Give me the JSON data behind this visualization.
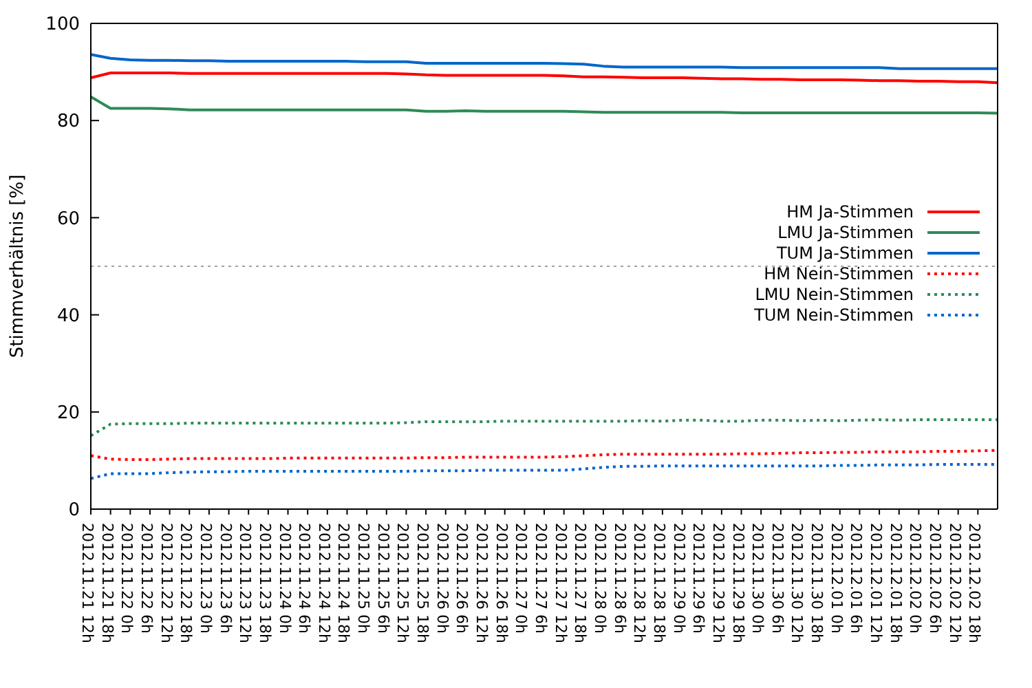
{
  "chart_data": {
    "type": "line",
    "ylabel": "Stimmverhältnis [%]",
    "x": [
      "2012-11-21T12:00",
      "2012-11-21T18:00",
      "2012-11-22T00:00",
      "2012-11-22T06:00",
      "2012-11-22T12:00",
      "2012-11-22T18:00",
      "2012-11-23T00:00",
      "2012-11-23T06:00",
      "2012-11-23T12:00",
      "2012-11-23T18:00",
      "2012-11-24T00:00",
      "2012-11-24T06:00",
      "2012-11-24T12:00",
      "2012-11-24T18:00",
      "2012-11-25T00:00",
      "2012-11-25T06:00",
      "2012-11-25T12:00",
      "2012-11-25T18:00",
      "2012-11-26T00:00",
      "2012-11-26T06:00",
      "2012-11-26T12:00",
      "2012-11-26T18:00",
      "2012-11-27T00:00",
      "2012-11-27T06:00",
      "2012-11-27T12:00",
      "2012-11-27T18:00",
      "2012-11-28T00:00",
      "2012-11-28T06:00",
      "2012-11-28T12:00",
      "2012-11-28T18:00",
      "2012-11-29T00:00",
      "2012-11-29T06:00",
      "2012-11-29T12:00",
      "2012-11-29T18:00",
      "2012-11-30T00:00",
      "2012-11-30T06:00",
      "2012-11-30T12:00",
      "2012-11-30T18:00",
      "2012-12-01T00:00",
      "2012-12-01T06:00",
      "2012-12-01T12:00",
      "2012-12-01T18:00",
      "2012-12-02T00:00",
      "2012-12-02T06:00",
      "2012-12-02T12:00",
      "2012-12-02T18:00",
      "2012-12-03T00:00"
    ],
    "series": [
      {
        "name": "HM Ja-Stimmen",
        "color": "#ff0000",
        "line_style": "solid",
        "values": [
          88.8,
          89.8,
          89.8,
          89.8,
          89.8,
          89.7,
          89.7,
          89.7,
          89.7,
          89.7,
          89.7,
          89.7,
          89.7,
          89.7,
          89.7,
          89.7,
          89.6,
          89.4,
          89.3,
          89.3,
          89.3,
          89.3,
          89.3,
          89.3,
          89.2,
          89.0,
          89.0,
          88.9,
          88.8,
          88.8,
          88.8,
          88.7,
          88.6,
          88.6,
          88.5,
          88.5,
          88.4,
          88.4,
          88.4,
          88.3,
          88.2,
          88.2,
          88.1,
          88.1,
          88.0,
          88.0,
          87.8
        ]
      },
      {
        "name": "LMU Ja-Stimmen",
        "color": "#2e8b57",
        "line_style": "solid",
        "values": [
          84.9,
          82.5,
          82.5,
          82.5,
          82.4,
          82.2,
          82.2,
          82.2,
          82.2,
          82.2,
          82.2,
          82.2,
          82.2,
          82.2,
          82.2,
          82.2,
          82.2,
          81.9,
          81.9,
          82.0,
          81.9,
          81.9,
          81.9,
          81.9,
          81.9,
          81.8,
          81.7,
          81.7,
          81.7,
          81.7,
          81.7,
          81.7,
          81.7,
          81.6,
          81.6,
          81.6,
          81.6,
          81.6,
          81.6,
          81.6,
          81.6,
          81.6,
          81.6,
          81.6,
          81.6,
          81.6,
          81.5
        ]
      },
      {
        "name": "TUM Ja-Stimmen",
        "color": "#0066cc",
        "line_style": "solid",
        "values": [
          93.6,
          92.8,
          92.5,
          92.4,
          92.4,
          92.3,
          92.3,
          92.2,
          92.2,
          92.2,
          92.2,
          92.2,
          92.2,
          92.2,
          92.1,
          92.1,
          92.1,
          91.8,
          91.8,
          91.8,
          91.8,
          91.8,
          91.8,
          91.8,
          91.7,
          91.6,
          91.2,
          91.0,
          91.0,
          91.0,
          91.0,
          91.0,
          91.0,
          90.9,
          90.9,
          90.9,
          90.9,
          90.9,
          90.9,
          90.9,
          90.9,
          90.7,
          90.7,
          90.7,
          90.7,
          90.7,
          90.7
        ]
      },
      {
        "name": "HM Nein-Stimmen",
        "color": "#ff0000",
        "line_style": "dotted",
        "values": [
          11.0,
          10.3,
          10.2,
          10.2,
          10.3,
          10.4,
          10.4,
          10.4,
          10.4,
          10.4,
          10.5,
          10.5,
          10.5,
          10.5,
          10.5,
          10.5,
          10.5,
          10.6,
          10.6,
          10.7,
          10.7,
          10.7,
          10.7,
          10.7,
          10.8,
          11.0,
          11.2,
          11.3,
          11.3,
          11.3,
          11.3,
          11.3,
          11.3,
          11.4,
          11.4,
          11.5,
          11.6,
          11.6,
          11.7,
          11.7,
          11.8,
          11.8,
          11.8,
          11.9,
          11.9,
          12.0,
          12.1
        ]
      },
      {
        "name": "LMU Nein-Stimmen",
        "color": "#2e8b57",
        "line_style": "dotted",
        "values": [
          15.1,
          17.5,
          17.6,
          17.6,
          17.6,
          17.7,
          17.7,
          17.7,
          17.7,
          17.7,
          17.7,
          17.7,
          17.7,
          17.7,
          17.7,
          17.7,
          17.8,
          18.0,
          18.0,
          18.0,
          18.0,
          18.1,
          18.1,
          18.1,
          18.1,
          18.1,
          18.1,
          18.1,
          18.2,
          18.1,
          18.3,
          18.3,
          18.1,
          18.1,
          18.3,
          18.3,
          18.2,
          18.3,
          18.2,
          18.3,
          18.4,
          18.3,
          18.4,
          18.4,
          18.4,
          18.4,
          18.4
        ]
      },
      {
        "name": "TUM Nein-Stimmen",
        "color": "#0066cc",
        "line_style": "dotted",
        "values": [
          6.3,
          7.3,
          7.3,
          7.3,
          7.5,
          7.6,
          7.7,
          7.7,
          7.8,
          7.8,
          7.8,
          7.8,
          7.8,
          7.8,
          7.8,
          7.8,
          7.8,
          7.9,
          7.9,
          7.9,
          8.0,
          8.0,
          8.0,
          8.0,
          8.0,
          8.3,
          8.6,
          8.8,
          8.8,
          8.9,
          8.9,
          8.9,
          8.9,
          8.9,
          8.9,
          8.9,
          8.9,
          8.9,
          9.0,
          9.0,
          9.1,
          9.1,
          9.1,
          9.2,
          9.2,
          9.2,
          9.2
        ]
      }
    ],
    "xlim": [
      "2012-11-21T12:00",
      "2012-12-03T00:00"
    ],
    "xticks": [
      {
        "value": "2012-11-21T12:00",
        "label": "2012.11.21 12h"
      },
      {
        "value": "2012-11-21T18:00",
        "label": "2012.11.21 18h"
      },
      {
        "value": "2012-11-22T00:00",
        "label": "2012.11.22 0h"
      },
      {
        "value": "2012-11-22T06:00",
        "label": "2012.11.22 6h"
      },
      {
        "value": "2012-11-22T12:00",
        "label": "2012.11.22 12h"
      },
      {
        "value": "2012-11-22T18:00",
        "label": "2012.11.22 18h"
      },
      {
        "value": "2012-11-23T00:00",
        "label": "2012.11.23 0h"
      },
      {
        "value": "2012-11-23T06:00",
        "label": "2012.11.23 6h"
      },
      {
        "value": "2012-11-23T12:00",
        "label": "2012.11.23 12h"
      },
      {
        "value": "2012-11-23T18:00",
        "label": "2012.11.23 18h"
      },
      {
        "value": "2012-11-24T00:00",
        "label": "2012.11.24 0h"
      },
      {
        "value": "2012-11-24T06:00",
        "label": "2012.11.24 6h"
      },
      {
        "value": "2012-11-24T12:00",
        "label": "2012.11.24 12h"
      },
      {
        "value": "2012-11-24T18:00",
        "label": "2012.11.24 18h"
      },
      {
        "value": "2012-11-25T00:00",
        "label": "2012.11.25 0h"
      },
      {
        "value": "2012-11-25T06:00",
        "label": "2012.11.25 6h"
      },
      {
        "value": "2012-11-25T12:00",
        "label": "2012.11.25 12h"
      },
      {
        "value": "2012-11-25T18:00",
        "label": "2012.11.25 18h"
      },
      {
        "value": "2012-11-26T00:00",
        "label": "2012.11.26 0h"
      },
      {
        "value": "2012-11-26T06:00",
        "label": "2012.11.26 6h"
      },
      {
        "value": "2012-11-26T12:00",
        "label": "2012.11.26 12h"
      },
      {
        "value": "2012-11-26T18:00",
        "label": "2012.11.26 18h"
      },
      {
        "value": "2012-11-27T00:00",
        "label": "2012.11.27 0h"
      },
      {
        "value": "2012-11-27T06:00",
        "label": "2012.11.27 6h"
      },
      {
        "value": "2012-11-27T12:00",
        "label": "2012.11.27 12h"
      },
      {
        "value": "2012-11-27T18:00",
        "label": "2012.11.27 18h"
      },
      {
        "value": "2012-11-28T00:00",
        "label": "2012.11.28 0h"
      },
      {
        "value": "2012-11-28T06:00",
        "label": "2012.11.28 6h"
      },
      {
        "value": "2012-11-28T12:00",
        "label": "2012.11.28 12h"
      },
      {
        "value": "2012-11-28T18:00",
        "label": "2012.11.28 18h"
      },
      {
        "value": "2012-11-29T00:00",
        "label": "2012.11.29 0h"
      },
      {
        "value": "2012-11-29T06:00",
        "label": "2012.11.29 6h"
      },
      {
        "value": "2012-11-29T12:00",
        "label": "2012.11.29 12h"
      },
      {
        "value": "2012-11-29T18:00",
        "label": "2012.11.29 18h"
      },
      {
        "value": "2012-11-30T00:00",
        "label": "2012.11.30 0h"
      },
      {
        "value": "2012-11-30T06:00",
        "label": "2012.11.30 6h"
      },
      {
        "value": "2012-11-30T12:00",
        "label": "2012.11.30 12h"
      },
      {
        "value": "2012-11-30T18:00",
        "label": "2012.11.30 18h"
      },
      {
        "value": "2012-12-01T00:00",
        "label": "2012.12.01 0h"
      },
      {
        "value": "2012-12-01T06:00",
        "label": "2012.12.01 6h"
      },
      {
        "value": "2012-12-01T12:00",
        "label": "2012.12.01 12h"
      },
      {
        "value": "2012-12-01T18:00",
        "label": "2012.12.01 18h"
      },
      {
        "value": "2012-12-02T00:00",
        "label": "2012.12.02 0h"
      },
      {
        "value": "2012-12-02T06:00",
        "label": "2012.12.02 6h"
      },
      {
        "value": "2012-12-02T12:00",
        "label": "2012.12.02 12h"
      },
      {
        "value": "2012-12-02T18:00",
        "label": "2012.12.02 18h"
      }
    ],
    "ylim": [
      0,
      100
    ],
    "yticks": [
      0,
      20,
      40,
      60,
      80,
      100
    ],
    "ref_lines": [
      {
        "axis": "y",
        "value": 50,
        "color": "#a0a0a0",
        "line_style": "dotted"
      }
    ],
    "grid": false,
    "legend": "right",
    "marker": "none"
  }
}
